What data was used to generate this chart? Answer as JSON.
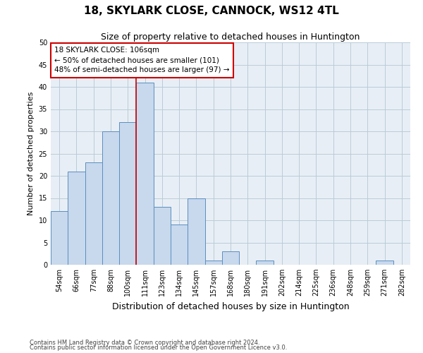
{
  "title": "18, SKYLARK CLOSE, CANNOCK, WS12 4TL",
  "subtitle": "Size of property relative to detached houses in Huntington",
  "xlabel": "Distribution of detached houses by size in Huntington",
  "ylabel": "Number of detached properties",
  "footnote1": "Contains HM Land Registry data © Crown copyright and database right 2024.",
  "footnote2": "Contains public sector information licensed under the Open Government Licence v3.0.",
  "categories": [
    "54sqm",
    "66sqm",
    "77sqm",
    "88sqm",
    "100sqm",
    "111sqm",
    "123sqm",
    "134sqm",
    "145sqm",
    "157sqm",
    "168sqm",
    "180sqm",
    "191sqm",
    "202sqm",
    "214sqm",
    "225sqm",
    "236sqm",
    "248sqm",
    "259sqm",
    "271sqm",
    "282sqm"
  ],
  "values": [
    12,
    21,
    23,
    30,
    32,
    41,
    13,
    9,
    15,
    1,
    3,
    0,
    1,
    0,
    0,
    0,
    0,
    0,
    0,
    1,
    0
  ],
  "bar_color": "#c8d8ed",
  "bar_edge_color": "#5a8fc0",
  "grid_color": "#b8ccd8",
  "background_color": "#e8eef5",
  "red_line_index": 5,
  "annotation_text": "18 SKYLARK CLOSE: 106sqm\n← 50% of detached houses are smaller (101)\n48% of semi-detached houses are larger (97) →",
  "annotation_box_facecolor": "#ffffff",
  "annotation_box_edgecolor": "#cc0000",
  "ylim": [
    0,
    50
  ],
  "yticks": [
    0,
    5,
    10,
    15,
    20,
    25,
    30,
    35,
    40,
    45,
    50
  ],
  "title_fontsize": 11,
  "subtitle_fontsize": 9,
  "ylabel_fontsize": 8,
  "xlabel_fontsize": 9,
  "tick_fontsize": 7,
  "annotation_fontsize": 7.5,
  "footnote_fontsize": 6
}
